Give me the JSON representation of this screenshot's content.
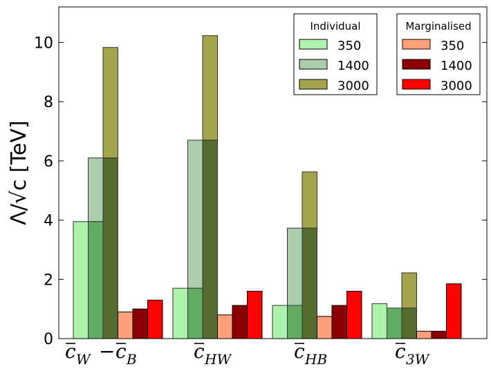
{
  "chart_data": {
    "type": "bar",
    "ylabel": "Λ/√c [TeV]",
    "ylim": [
      0,
      11.2
    ],
    "yticks": [
      0,
      2,
      4,
      6,
      8,
      10
    ],
    "categories": [
      {
        "base": "c",
        "sub": "W",
        "second_base": "c",
        "second_sub": "B",
        "label_text": "c̄_W − c̄_B"
      },
      {
        "base": "c",
        "sub": "HW",
        "label_text": "c̄_HW"
      },
      {
        "base": "c",
        "sub": "HB",
        "label_text": "c̄_HB"
      },
      {
        "base": "c",
        "sub": "3W",
        "label_text": "c̄_3W"
      }
    ],
    "individual": {
      "title": "Individual",
      "series": [
        {
          "name": "350",
          "color": "#aff2ae",
          "values": [
            3.95,
            1.7,
            1.12,
            1.18
          ]
        },
        {
          "name": "1400",
          "color": "#abcdab",
          "values": [
            6.1,
            6.7,
            3.73,
            1.03
          ]
        },
        {
          "name": "3000",
          "color": "#a5a34d",
          "values": [
            9.83,
            10.23,
            5.63,
            2.22
          ]
        }
      ]
    },
    "marginalised": {
      "title": "Marginalised",
      "series": [
        {
          "name": "350",
          "color": "#ffa07a",
          "values": [
            0.9,
            0.8,
            0.75,
            0.25
          ]
        },
        {
          "name": "1400",
          "color": "#8b0000",
          "values": [
            1.0,
            1.12,
            1.12,
            0.25
          ]
        },
        {
          "name": "3000",
          "color": "#ff0000",
          "values": [
            1.3,
            1.6,
            1.6,
            1.85
          ]
        }
      ]
    },
    "overlay_colors": [
      "#62ab62",
      "#556b2f"
    ]
  }
}
